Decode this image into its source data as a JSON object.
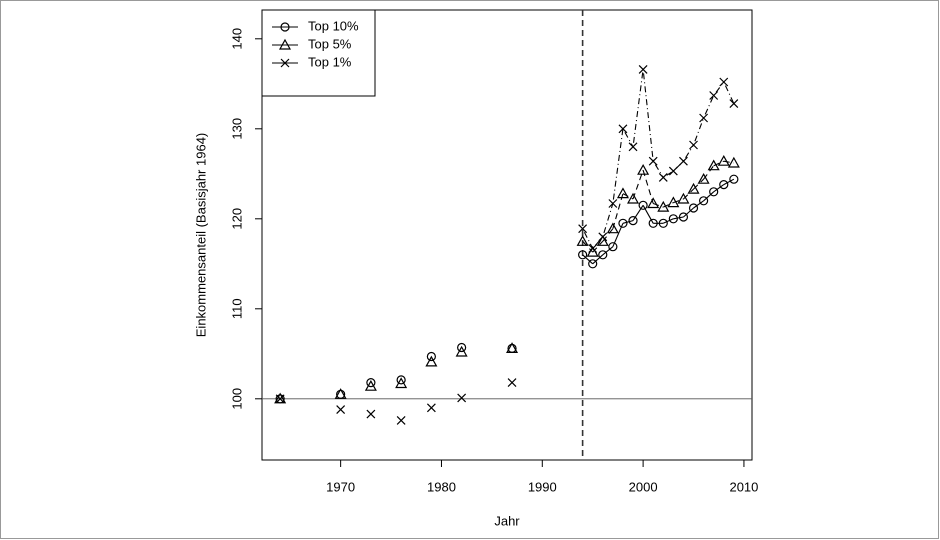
{
  "chart_data": {
    "type": "scatter",
    "x_label": "Jahr",
    "y_label": "Einkommensanteil (Basisjahr 1964)",
    "x": [
      1964,
      1970,
      1973,
      1976,
      1979,
      1982,
      1987,
      1994,
      1995,
      1996,
      1997,
      1998,
      1999,
      2000,
      2001,
      2002,
      2003,
      2004,
      2005,
      2006,
      2007,
      2008,
      2009
    ],
    "series": [
      {
        "name": "Top 10%",
        "color": "#000000",
        "marker": "circle",
        "linestyle": "solid",
        "values": [
          100,
          100.5,
          101.8,
          102.1,
          104.7,
          105.7,
          105.6,
          116.0,
          115.0,
          116.0,
          116.9,
          119.5,
          119.8,
          121.5,
          119.5,
          119.5,
          120.0,
          120.2,
          121.2,
          122.0,
          123.0,
          123.8,
          124.4
        ]
      },
      {
        "name": "Top 5%",
        "color": "#000000",
        "marker": "triangle",
        "linestyle": "dashed",
        "values": [
          100,
          100.5,
          101.4,
          101.7,
          104.1,
          105.2,
          105.6,
          117.5,
          116.3,
          117.5,
          118.9,
          122.8,
          122.2,
          125.4,
          121.7,
          121.3,
          121.8,
          122.2,
          123.3,
          124.4,
          125.9,
          126.4,
          126.2
        ]
      },
      {
        "name": "Top 1%",
        "color": "#000000",
        "marker": "cross",
        "linestyle": "dotdash",
        "values": [
          100,
          98.8,
          98.3,
          97.6,
          99.0,
          100.1,
          101.8,
          118.9,
          116.7,
          118.0,
          121.7,
          130.0,
          128.0,
          136.6,
          126.4,
          124.6,
          125.3,
          126.4,
          128.2,
          131.2,
          133.7,
          135.2,
          132.8
        ]
      }
    ],
    "xlim": [
      1962.2,
      2010.8
    ],
    "ylim": [
      93.2,
      143.2
    ],
    "xticks": [
      1970,
      1980,
      1990,
      2000,
      2010
    ],
    "yticks": [
      100,
      110,
      120,
      130,
      140
    ],
    "vline": 1994,
    "hline": 100,
    "legend": "top-left"
  }
}
